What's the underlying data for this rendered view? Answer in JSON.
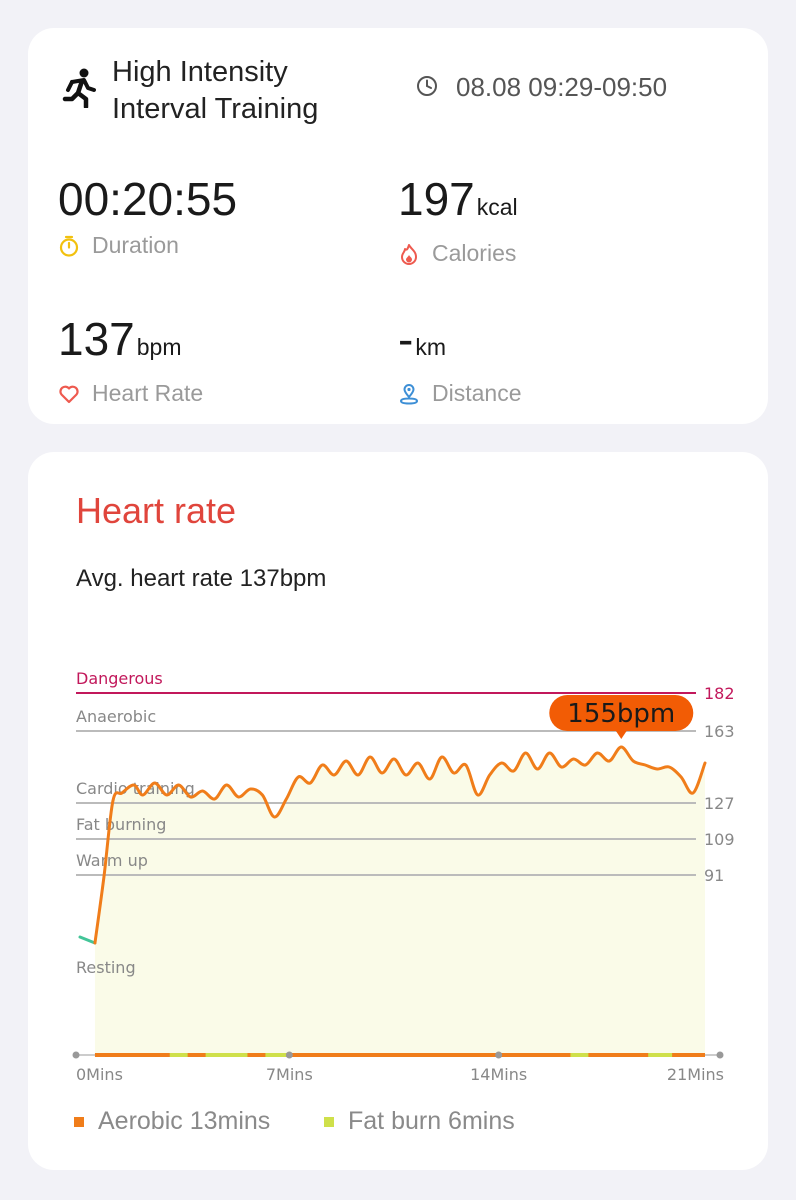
{
  "workout": {
    "title": "High Intensity Interval Training",
    "icon": "running-person-icon",
    "time_range": "08.08 09:29-09:50"
  },
  "stats": {
    "duration": {
      "value": "00:20:55",
      "unit": "",
      "label": "Duration",
      "icon": "stopwatch-icon",
      "color": "#f2c10f"
    },
    "calories": {
      "value": "197",
      "unit": "kcal",
      "label": "Calories",
      "icon": "flame-icon",
      "color": "#ee5a4f"
    },
    "heart_rate": {
      "value": "137",
      "unit": "bpm",
      "label": "Heart Rate",
      "icon": "heart-icon",
      "color": "#ee5a4f"
    },
    "distance": {
      "value": "-",
      "unit": "km",
      "label": "Distance",
      "icon": "location-pin-icon",
      "color": "#3d8fd6"
    }
  },
  "heart_rate_section": {
    "title": "Heart rate",
    "avg_text": "Avg. heart rate 137bpm"
  },
  "chart_data": {
    "type": "line",
    "x_unit": "mins",
    "x_range": [
      0,
      21
    ],
    "x_ticks": [
      "0Mins",
      "7Mins",
      "14Mins",
      "21Mins"
    ],
    "x_tick_values": [
      0,
      7,
      14,
      21
    ],
    "y_range": [
      40,
      200
    ],
    "zones": [
      {
        "name": "Dangerous",
        "threshold": 182,
        "color": "#c2185b"
      },
      {
        "name": "Anaerobic",
        "threshold": 163,
        "color": "#bbbbbb"
      },
      {
        "name": "Cardio training",
        "threshold": 127,
        "color": "#bbbbbb"
      },
      {
        "name": "Fat burning",
        "threshold": 109,
        "color": "#bbbbbb"
      },
      {
        "name": "Warm up",
        "threshold": 91,
        "color": "#bbbbbb"
      },
      {
        "name": "Resting",
        "threshold": null,
        "color": "#bbbbbb"
      }
    ],
    "series": [
      {
        "x": [
          0,
          0.5,
          0.8,
          1.1,
          1.4,
          1.8,
          2.1,
          2.5,
          2.9,
          3.3,
          3.7,
          4.1,
          4.5,
          4.9,
          5.3,
          5.7,
          6.1,
          6.5,
          6.9,
          7.3,
          7.7,
          8.1,
          8.5,
          8.9,
          9.3,
          9.7,
          10.1,
          10.5,
          10.9,
          11.3,
          11.7,
          12.1,
          12.5,
          12.9,
          13.3,
          13.7,
          14.1,
          14.5,
          14.9,
          15.3,
          15.7,
          16.1,
          16.5,
          16.9,
          17.3,
          17.7,
          18.1,
          18.5,
          18.9,
          19.3,
          19.7,
          20.1,
          20.5,
          20.9
        ],
        "y": [
          60,
          57,
          90,
          128,
          132,
          136,
          131,
          137,
          131,
          136,
          130,
          133,
          129,
          136,
          130,
          134,
          131,
          120,
          129,
          140,
          137,
          146,
          141,
          148,
          141,
          150,
          142,
          149,
          141,
          147,
          139,
          150,
          142,
          146,
          131,
          141,
          147,
          143,
          152,
          144,
          152,
          145,
          149,
          146,
          152,
          148,
          155,
          148,
          146,
          144,
          145,
          140,
          132,
          147
        ]
      }
    ],
    "peak_marker": {
      "label": "155bpm",
      "x": 18.1,
      "y": 155
    },
    "area_fill": "#fafbe8",
    "line_colors": {
      "resting": "#43c598",
      "active": "#f07d1a"
    }
  },
  "legend": {
    "aerobic": {
      "label": "Aerobic 13mins",
      "color": "#f07d1a"
    },
    "fat_burn": {
      "label": "Fat burn 6mins",
      "color": "#cfe04a"
    }
  }
}
